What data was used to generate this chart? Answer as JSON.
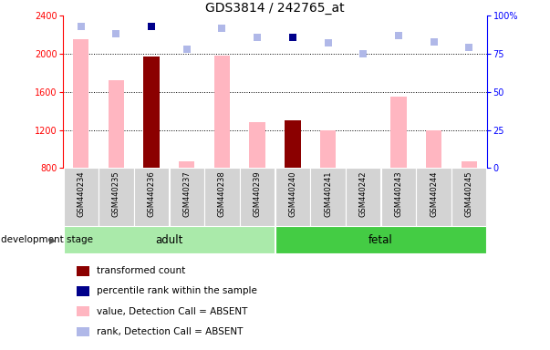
{
  "title": "GDS3814 / 242765_at",
  "samples": [
    "GSM440234",
    "GSM440235",
    "GSM440236",
    "GSM440237",
    "GSM440238",
    "GSM440239",
    "GSM440240",
    "GSM440241",
    "GSM440242",
    "GSM440243",
    "GSM440244",
    "GSM440245"
  ],
  "bar_values": [
    2150,
    1720,
    1970,
    870,
    1980,
    1280,
    1300,
    1200,
    null,
    1550,
    1200,
    870
  ],
  "bar_is_dark": [
    false,
    false,
    true,
    false,
    false,
    false,
    true,
    false,
    false,
    false,
    false,
    false
  ],
  "dot_ranks": [
    93,
    88,
    93,
    78,
    92,
    86,
    86,
    82,
    75,
    87,
    83,
    79
  ],
  "ylim_left": [
    800,
    2400
  ],
  "ylim_right": [
    0,
    100
  ],
  "yticks_left": [
    800,
    1200,
    1600,
    2000,
    2400
  ],
  "yticks_right": [
    0,
    25,
    50,
    75,
    100
  ],
  "groups": [
    {
      "label": "adult",
      "start": 0,
      "end": 6,
      "color": "#aaeaaa"
    },
    {
      "label": "fetal",
      "start": 6,
      "end": 12,
      "color": "#44cc44"
    }
  ],
  "group_label": "development stage",
  "legend_items": [
    {
      "color": "#8b0000",
      "label": "transformed count"
    },
    {
      "color": "#00008b",
      "label": "percentile rank within the sample"
    },
    {
      "color": "#ffb6c1",
      "label": "value, Detection Call = ABSENT"
    },
    {
      "color": "#b0b8e8",
      "label": "rank, Detection Call = ABSENT"
    }
  ],
  "bar_color_absent": "#ffb6c1",
  "bar_color_dark": "#8b0000",
  "dot_color_absent": "#b0b8e8",
  "dot_color_dark": "#00008b",
  "bg_color": "#ffffff",
  "plot_bg": "#ffffff"
}
